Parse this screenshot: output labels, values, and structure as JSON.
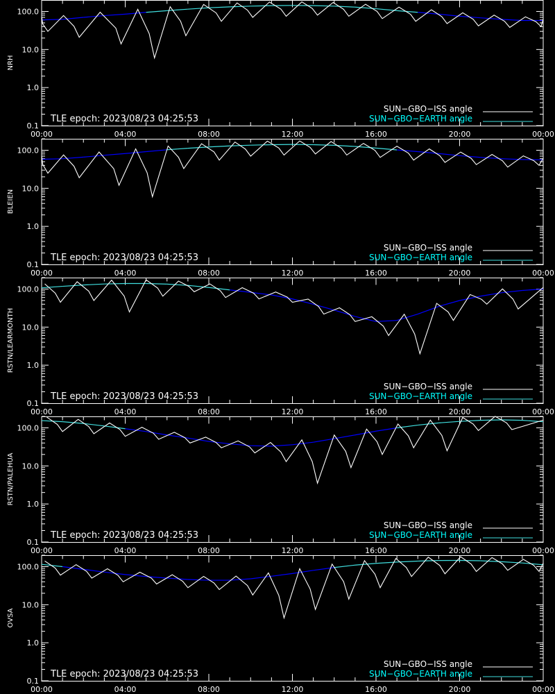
{
  "colors": {
    "background": "#000000",
    "axes": "#ffffff",
    "iss_line": "#ffffff",
    "iss_dim": "#808080",
    "earth_line_above": "#40e0e0",
    "earth_line_below": "#0000ff",
    "earth_label": "#00ffff"
  },
  "legend": {
    "iss_label": "SUN−GBO−ISS angle",
    "earth_label": "SUN−GBO−EARTH angle",
    "placement": "bottom-right"
  },
  "epoch_text": "TLE epoch: 2023/08/23 04:25:53",
  "x_ticks": [
    "00:00",
    "04:00",
    "08:00",
    "12:00",
    "16:00",
    "20:00",
    "00:00"
  ],
  "y_ticks": [
    "100.0",
    "10.0",
    "1.0",
    "0.1"
  ],
  "chart_data": [
    {
      "type": "line",
      "station": "NRH",
      "ylabel": "NRH",
      "yscale": "log",
      "ylim": [
        0.1,
        200
      ],
      "xlim_hours": [
        0,
        24
      ],
      "series": [
        {
          "name": "SUN−GBO−EARTH angle",
          "x": [
            0,
            1,
            2,
            3,
            4,
            5,
            6,
            7,
            8,
            9,
            10,
            11,
            12,
            13,
            14,
            15,
            16,
            17,
            18,
            19,
            20,
            21,
            22,
            23,
            24
          ],
          "y": [
            60,
            62,
            70,
            78,
            85,
            95,
            105,
            115,
            125,
            132,
            138,
            142,
            144,
            142,
            138,
            130,
            118,
            105,
            95,
            85,
            75,
            68,
            62,
            58,
            58
          ]
        },
        {
          "name": "SUN−GBO−ISS angle",
          "x": [
            0.3,
            1.8,
            3.8,
            5.4,
            6.9,
            8.6,
            10.1,
            11.7,
            13.2,
            14.7,
            16.3,
            17.9,
            19.4,
            20.9,
            22.4,
            23.9
          ],
          "y": [
            30,
            21,
            14,
            6,
            23,
            55,
            70,
            75,
            80,
            75,
            65,
            55,
            48,
            42,
            38,
            40
          ]
        }
      ]
    },
    {
      "type": "line",
      "station": "BLEIEN",
      "ylabel": "BLEIEN",
      "yscale": "log",
      "ylim": [
        0.1,
        200
      ],
      "xlim_hours": [
        0,
        24
      ],
      "series": [
        {
          "name": "SUN−GBO−EARTH angle",
          "x": [
            0,
            1,
            2,
            3,
            4,
            5,
            6,
            7,
            8,
            9,
            10,
            11,
            12,
            13,
            14,
            15,
            16,
            17,
            18,
            19,
            20,
            21,
            22,
            23,
            24
          ],
          "y": [
            58,
            60,
            66,
            74,
            82,
            92,
            103,
            113,
            122,
            130,
            136,
            140,
            142,
            140,
            135,
            126,
            114,
            102,
            92,
            82,
            72,
            65,
            60,
            57,
            56
          ]
        },
        {
          "name": "SUN−GBO−ISS angle",
          "x": [
            0.3,
            1.8,
            3.7,
            5.3,
            6.8,
            8.5,
            10.0,
            11.6,
            13.1,
            14.6,
            16.2,
            17.8,
            19.3,
            20.8,
            22.3,
            23.8
          ],
          "y": [
            25,
            19,
            12,
            6,
            33,
            55,
            70,
            75,
            80,
            75,
            65,
            55,
            48,
            42,
            36,
            40
          ]
        }
      ]
    },
    {
      "type": "line",
      "station": "RSTN/LEARMONTH",
      "ylabel": "RSTN/LEARMONTH",
      "yscale": "log",
      "ylim": [
        0.1,
        200
      ],
      "xlim_hours": [
        0,
        24
      ],
      "series": [
        {
          "name": "SUN−GBO−EARTH angle",
          "x": [
            0,
            1,
            2,
            3,
            4,
            5,
            6,
            7,
            8,
            9,
            10,
            11,
            12,
            13,
            14,
            15,
            16,
            17,
            18,
            19,
            20,
            21,
            22,
            23,
            24
          ],
          "y": [
            108,
            118,
            128,
            136,
            140,
            140,
            135,
            125,
            110,
            95,
            82,
            70,
            55,
            40,
            28,
            19,
            14,
            15,
            22,
            35,
            50,
            65,
            80,
            92,
            100
          ]
        },
        {
          "name": "SUN−GBO−ISS angle",
          "x": [
            0.9,
            2.5,
            4.2,
            5.8,
            7.3,
            8.8,
            10.4,
            12.0,
            13.5,
            15.0,
            16.6,
            18.1,
            19.7,
            21.3,
            22.8
          ],
          "y": [
            45,
            50,
            25,
            65,
            85,
            60,
            55,
            45,
            22,
            14,
            6,
            2,
            15,
            40,
            30
          ]
        }
      ]
    },
    {
      "type": "line",
      "station": "RSTN/PALEHUA",
      "ylabel": "RSTN/PALEHUA",
      "yscale": "log",
      "ylim": [
        0.1,
        200
      ],
      "xlim_hours": [
        0,
        24
      ],
      "series": [
        {
          "name": "SUN−GBO−EARTH angle",
          "x": [
            0,
            1,
            2,
            3,
            4,
            5,
            6,
            7,
            8,
            9,
            10,
            11,
            12,
            13,
            14,
            15,
            16,
            17,
            18,
            19,
            20,
            21,
            22,
            23,
            24
          ],
          "y": [
            155,
            145,
            130,
            112,
            95,
            80,
            65,
            54,
            44,
            38,
            34,
            33,
            36,
            42,
            52,
            65,
            82,
            100,
            118,
            135,
            148,
            158,
            162,
            158,
            145
          ]
        },
        {
          "name": "SUN−GBO−ISS angle",
          "x": [
            1.0,
            2.5,
            4.0,
            5.6,
            7.1,
            8.6,
            10.2,
            11.7,
            13.2,
            14.8,
            16.3,
            17.8,
            19.4,
            20.9,
            22.5
          ],
          "y": [
            80,
            70,
            60,
            50,
            40,
            30,
            22,
            13,
            3.5,
            9,
            20,
            30,
            25,
            85,
            90
          ]
        }
      ]
    },
    {
      "type": "line",
      "station": "OVSA",
      "ylabel": "OVSA",
      "yscale": "log",
      "ylim": [
        0.1,
        200
      ],
      "xlim_hours": [
        0,
        24
      ],
      "series": [
        {
          "name": "SUN−GBO−EARTH angle",
          "x": [
            0,
            1,
            2,
            3,
            4,
            5,
            6,
            7,
            8,
            9,
            10,
            11,
            12,
            13,
            14,
            15,
            16,
            17,
            18,
            19,
            20,
            21,
            22,
            23,
            24
          ],
          "y": [
            115,
            100,
            85,
            72,
            62,
            55,
            50,
            46,
            44,
            44,
            48,
            56,
            66,
            80,
            95,
            110,
            122,
            132,
            140,
            145,
            146,
            143,
            135,
            125,
            112
          ]
        },
        {
          "name": "SUN−GBO−ISS angle",
          "x": [
            0.9,
            2.4,
            3.9,
            5.5,
            7.0,
            8.5,
            10.1,
            11.6,
            13.1,
            14.7,
            16.2,
            17.7,
            19.3,
            20.8,
            22.3,
            23.8
          ],
          "y": [
            60,
            50,
            40,
            35,
            28,
            25,
            18,
            4.5,
            7.5,
            14,
            28,
            55,
            65,
            75,
            80,
            75
          ]
        }
      ]
    }
  ]
}
